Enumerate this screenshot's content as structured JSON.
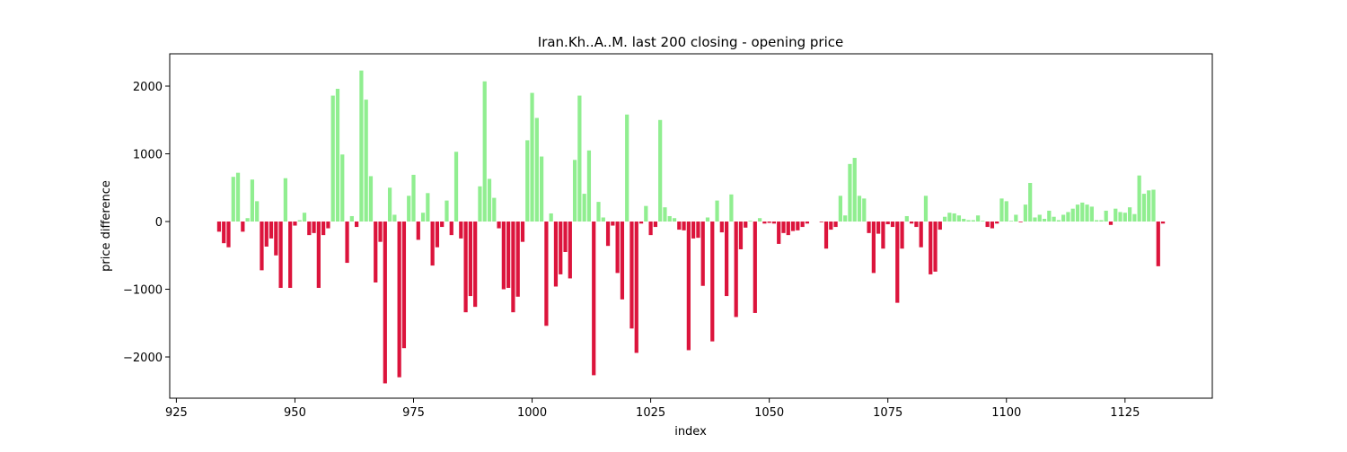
{
  "chart_data": {
    "type": "bar",
    "title": "Iran.Kh..A..M. last 200 closing - opening price",
    "xlabel": "index",
    "ylabel": "price difference",
    "positive_color": "#90ee90",
    "negative_color": "#dc143c",
    "bar_width": 0.8,
    "xlim": [
      923.6,
      1143.4
    ],
    "xticks": [
      925,
      950,
      975,
      1000,
      1025,
      1050,
      1075,
      1100,
      1125
    ],
    "ylim": [
      -2609,
      2477
    ],
    "yticks": [
      {
        "value": -2000,
        "label": "−2000"
      },
      {
        "value": -1000,
        "label": "−1000"
      },
      0,
      1000,
      2000
    ],
    "x": [
      934,
      935,
      936,
      937,
      938,
      939,
      940,
      941,
      942,
      943,
      944,
      945,
      946,
      947,
      948,
      949,
      950,
      951,
      952,
      953,
      954,
      955,
      956,
      957,
      958,
      959,
      960,
      961,
      962,
      963,
      964,
      965,
      966,
      967,
      968,
      969,
      970,
      971,
      972,
      973,
      974,
      975,
      976,
      977,
      978,
      979,
      980,
      981,
      982,
      983,
      984,
      985,
      986,
      987,
      988,
      989,
      990,
      991,
      992,
      993,
      994,
      995,
      996,
      997,
      998,
      999,
      1000,
      1001,
      1002,
      1003,
      1004,
      1005,
      1006,
      1007,
      1008,
      1009,
      1010,
      1011,
      1012,
      1013,
      1014,
      1015,
      1016,
      1017,
      1018,
      1019,
      1020,
      1021,
      1022,
      1023,
      1024,
      1025,
      1026,
      1027,
      1028,
      1029,
      1030,
      1031,
      1032,
      1033,
      1034,
      1035,
      1036,
      1037,
      1038,
      1039,
      1040,
      1041,
      1042,
      1043,
      1044,
      1045,
      1046,
      1047,
      1048,
      1049,
      1050,
      1051,
      1052,
      1053,
      1054,
      1055,
      1056,
      1057,
      1058,
      1059,
      1060,
      1061,
      1062,
      1063,
      1064,
      1065,
      1066,
      1067,
      1068,
      1069,
      1070,
      1071,
      1072,
      1073,
      1074,
      1075,
      1076,
      1077,
      1078,
      1079,
      1080,
      1081,
      1082,
      1083,
      1084,
      1085,
      1086,
      1087,
      1088,
      1089,
      1090,
      1091,
      1092,
      1093,
      1094,
      1095,
      1096,
      1097,
      1098,
      1099,
      1100,
      1101,
      1102,
      1103,
      1104,
      1105,
      1106,
      1107,
      1108,
      1109,
      1110,
      1111,
      1112,
      1113,
      1114,
      1115,
      1116,
      1117,
      1118,
      1119,
      1120,
      1121,
      1122,
      1123,
      1124,
      1125,
      1126,
      1127,
      1128,
      1129,
      1130,
      1131,
      1132,
      1133
    ],
    "values": [
      -150,
      -320,
      -380,
      660,
      720,
      -150,
      50,
      620,
      300,
      -720,
      -370,
      -250,
      -500,
      -980,
      640,
      -980,
      -60,
      20,
      130,
      -200,
      -170,
      -980,
      -200,
      -100,
      1860,
      1960,
      990,
      -610,
      80,
      -80,
      2230,
      1800,
      670,
      -900,
      -300,
      -2390,
      500,
      100,
      -2300,
      -1870,
      380,
      690,
      -270,
      130,
      420,
      -650,
      -380,
      -80,
      310,
      -200,
      1030,
      -250,
      -1340,
      -1100,
      -1260,
      520,
      2070,
      630,
      350,
      -100,
      -1000,
      -980,
      -1340,
      -1110,
      -300,
      1200,
      1900,
      1530,
      960,
      -1540,
      120,
      -960,
      -780,
      -450,
      -840,
      910,
      1860,
      410,
      1050,
      -2270,
      290,
      60,
      -360,
      -60,
      -760,
      -1150,
      1580,
      -1580,
      -1940,
      -30,
      230,
      -200,
      -80,
      1500,
      210,
      80,
      50,
      -120,
      -130,
      -1900,
      -250,
      -240,
      -950,
      60,
      -1770,
      310,
      -160,
      -1100,
      400,
      -1410,
      -410,
      -90,
      10,
      -1350,
      50,
      -30,
      -20,
      -30,
      -330,
      -170,
      -200,
      -140,
      -130,
      -80,
      -30,
      0,
      0,
      -10,
      -400,
      -120,
      -80,
      380,
      90,
      850,
      940,
      380,
      340,
      -170,
      -760,
      -180,
      -400,
      -40,
      -80,
      -1200,
      -400,
      80,
      -30,
      -80,
      -380,
      380,
      -780,
      -740,
      -120,
      70,
      130,
      120,
      90,
      40,
      20,
      20,
      90,
      10,
      -80,
      -100,
      -30,
      340,
      300,
      10,
      100,
      -10,
      250,
      570,
      60,
      100,
      40,
      160,
      70,
      20,
      100,
      140,
      190,
      250,
      280,
      250,
      220,
      20,
      20,
      160,
      -50,
      190,
      140,
      130,
      210,
      110,
      680,
      410,
      460,
      470,
      -660,
      -30
    ]
  }
}
